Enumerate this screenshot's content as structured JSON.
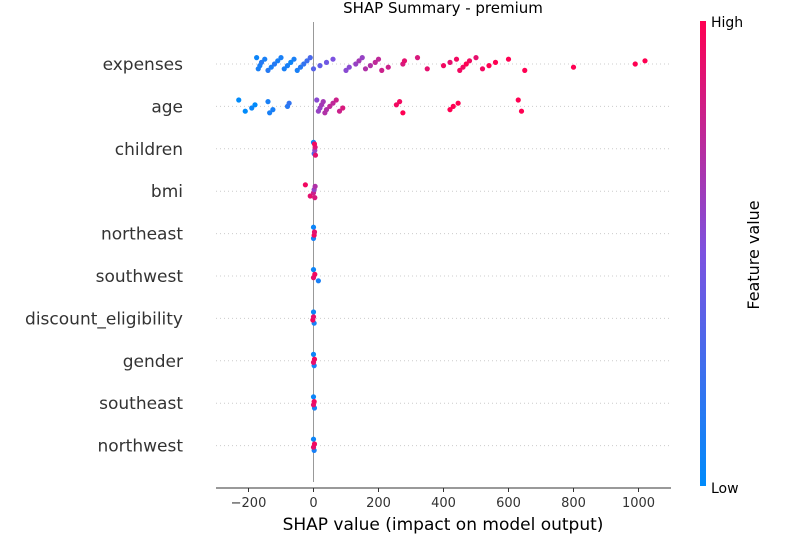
{
  "chart_data": {
    "type": "scatter",
    "title": "SHAP Summary - premium",
    "xlabel": "SHAP value (impact on model output)",
    "xlim": [
      -300,
      1100
    ],
    "xticks": [
      -200,
      0,
      200,
      400,
      600,
      800,
      1000
    ],
    "xtick_labels": [
      "−200",
      "0",
      "200",
      "400",
      "600",
      "800",
      "1000"
    ],
    "features": [
      "expenses",
      "age",
      "children",
      "bmi",
      "northeast",
      "southwest",
      "discount_eligibility",
      "gender",
      "southeast",
      "northwest"
    ],
    "colorbar": {
      "label": "Feature value",
      "high_label": "High",
      "low_label": "Low",
      "low_color": "#008bfb",
      "mid_color": "#7c52e0",
      "high_color": "#ff0052"
    },
    "series": [
      {
        "feature": "expenses",
        "points": [
          [
            -175,
            0.05
          ],
          [
            -170,
            0.1
          ],
          [
            -165,
            0.1
          ],
          [
            -160,
            0.15
          ],
          [
            -150,
            0.1
          ],
          [
            -140,
            0.15
          ],
          [
            -130,
            0.1
          ],
          [
            -120,
            0.15
          ],
          [
            -110,
            0.1
          ],
          [
            -100,
            0.1
          ],
          [
            -90,
            0.1
          ],
          [
            -80,
            0.1
          ],
          [
            -70,
            0.05
          ],
          [
            -60,
            0.1
          ],
          [
            -50,
            0.1
          ],
          [
            -40,
            0.15
          ],
          [
            -30,
            0.2
          ],
          [
            -20,
            0.25
          ],
          [
            -10,
            0.3
          ],
          [
            0,
            0.35
          ],
          [
            20,
            0.4
          ],
          [
            40,
            0.45
          ],
          [
            60,
            0.5
          ],
          [
            100,
            0.55
          ],
          [
            110,
            0.55
          ],
          [
            130,
            0.6
          ],
          [
            140,
            0.65
          ],
          [
            150,
            0.6
          ],
          [
            160,
            0.7
          ],
          [
            175,
            0.7
          ],
          [
            190,
            0.75
          ],
          [
            200,
            0.75
          ],
          [
            210,
            0.8
          ],
          [
            230,
            0.8
          ],
          [
            275,
            0.85
          ],
          [
            280,
            0.9
          ],
          [
            320,
            0.85
          ],
          [
            350,
            0.9
          ],
          [
            400,
            0.95
          ],
          [
            420,
            0.9
          ],
          [
            440,
            0.95
          ],
          [
            450,
            0.95
          ],
          [
            460,
            0.95
          ],
          [
            470,
            1
          ],
          [
            480,
            0.95
          ],
          [
            500,
            0.9
          ],
          [
            520,
            0.95
          ],
          [
            540,
            1
          ],
          [
            560,
            1
          ],
          [
            600,
            1
          ],
          [
            650,
            1
          ],
          [
            800,
            1
          ],
          [
            990,
            1
          ],
          [
            1020,
            1
          ]
        ]
      },
      {
        "feature": "age",
        "points": [
          [
            -230,
            0
          ],
          [
            -210,
            0
          ],
          [
            -190,
            0.05
          ],
          [
            -180,
            0
          ],
          [
            -140,
            0.1
          ],
          [
            -135,
            0.1
          ],
          [
            -125,
            0.1
          ],
          [
            -80,
            0.15
          ],
          [
            -75,
            0.2
          ],
          [
            10,
            0.55
          ],
          [
            15,
            0.6
          ],
          [
            20,
            0.6
          ],
          [
            25,
            0.65
          ],
          [
            30,
            0.65
          ],
          [
            35,
            0.7
          ],
          [
            40,
            0.7
          ],
          [
            50,
            0.75
          ],
          [
            60,
            0.75
          ],
          [
            70,
            0.8
          ],
          [
            80,
            0.8
          ],
          [
            90,
            0.85
          ],
          [
            255,
            0.95
          ],
          [
            265,
            0.95
          ],
          [
            275,
            1
          ],
          [
            420,
            1
          ],
          [
            430,
            1
          ],
          [
            445,
            1
          ],
          [
            630,
            1
          ],
          [
            640,
            1
          ]
        ]
      },
      {
        "feature": "children",
        "points": [
          [
            0,
            0.05
          ],
          [
            2,
            0.3
          ],
          [
            4,
            0.6
          ],
          [
            5,
            0.85
          ],
          [
            3,
            0.95
          ],
          [
            6,
            0.9
          ]
        ]
      },
      {
        "feature": "bmi",
        "points": [
          [
            -25,
            0.95
          ],
          [
            -10,
            0.9
          ],
          [
            0,
            0.8
          ],
          [
            2,
            0.6
          ],
          [
            5,
            0.7
          ],
          [
            4,
            0.85
          ]
        ]
      },
      {
        "feature": "northeast",
        "points": [
          [
            0,
            0.05
          ],
          [
            0,
            0.1
          ],
          [
            2,
            0.95
          ],
          [
            3,
            0.9
          ]
        ]
      },
      {
        "feature": "southwest",
        "points": [
          [
            0,
            0.05
          ],
          [
            15,
            0.1
          ],
          [
            0,
            0.9
          ],
          [
            4,
            0.95
          ]
        ]
      },
      {
        "feature": "discount_eligibility",
        "points": [
          [
            0,
            0.05
          ],
          [
            2,
            0.1
          ],
          [
            -2,
            0.95
          ],
          [
            0,
            0.9
          ]
        ]
      },
      {
        "feature": "gender",
        "points": [
          [
            0,
            0.05
          ],
          [
            2,
            0.1
          ],
          [
            0,
            0.9
          ],
          [
            3,
            0.95
          ]
        ]
      },
      {
        "feature": "southeast",
        "points": [
          [
            0,
            0.05
          ],
          [
            3,
            0.1
          ],
          [
            0,
            0.9
          ],
          [
            2,
            0.95
          ]
        ]
      },
      {
        "feature": "northwest",
        "points": [
          [
            0,
            0.05
          ],
          [
            2,
            0.1
          ],
          [
            0,
            0.9
          ],
          [
            3,
            0.95
          ]
        ]
      }
    ]
  }
}
